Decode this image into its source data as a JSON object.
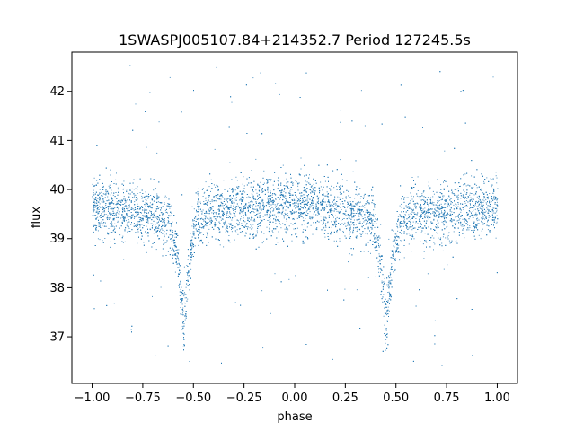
{
  "chart_data": {
    "type": "scatter",
    "title": "1SWASPJ005107.84+214352.7 Period 127245.5s",
    "xlabel": "phase",
    "ylabel": "flux",
    "xlim": [
      -1.1,
      1.1
    ],
    "ylim": [
      36.05,
      42.8
    ],
    "xticks": [
      -1.0,
      -0.75,
      -0.5,
      -0.25,
      0.0,
      0.25,
      0.5,
      0.75,
      1.0
    ],
    "xtick_labels": [
      "−1.00",
      "−0.75",
      "−0.50",
      "−0.25",
      "0.00",
      "0.25",
      "0.50",
      "0.75",
      "1.00"
    ],
    "yticks": [
      37,
      38,
      39,
      40,
      41,
      42
    ],
    "ytick_labels": [
      "37",
      "38",
      "39",
      "40",
      "41",
      "42"
    ],
    "grid": false,
    "marker_color": "#1f77b4",
    "series": [
      {
        "baseline_flux": 39.6,
        "x_range": [
          -1.0,
          1.0
        ],
        "eclipse_phases": [
          -0.55,
          0.45
        ],
        "eclipse_min_flux": 37.3,
        "profile": [
          {
            "x": -1.0,
            "y": 39.65
          },
          {
            "x": -0.9,
            "y": 39.6
          },
          {
            "x": -0.8,
            "y": 39.55
          },
          {
            "x": -0.7,
            "y": 39.5
          },
          {
            "x": -0.62,
            "y": 39.4
          },
          {
            "x": -0.58,
            "y": 38.6
          },
          {
            "x": -0.55,
            "y": 37.3
          },
          {
            "x": -0.52,
            "y": 38.6
          },
          {
            "x": -0.48,
            "y": 39.4
          },
          {
            "x": -0.4,
            "y": 39.55
          },
          {
            "x": -0.25,
            "y": 39.6
          },
          {
            "x": 0.0,
            "y": 39.7
          },
          {
            "x": 0.25,
            "y": 39.55
          },
          {
            "x": 0.38,
            "y": 39.4
          },
          {
            "x": 0.42,
            "y": 38.6
          },
          {
            "x": 0.45,
            "y": 37.3
          },
          {
            "x": 0.48,
            "y": 38.6
          },
          {
            "x": 0.52,
            "y": 39.4
          },
          {
            "x": 0.6,
            "y": 39.5
          },
          {
            "x": 0.75,
            "y": 39.55
          },
          {
            "x": 0.9,
            "y": 39.6
          },
          {
            "x": 1.0,
            "y": 39.65
          }
        ]
      }
    ]
  }
}
